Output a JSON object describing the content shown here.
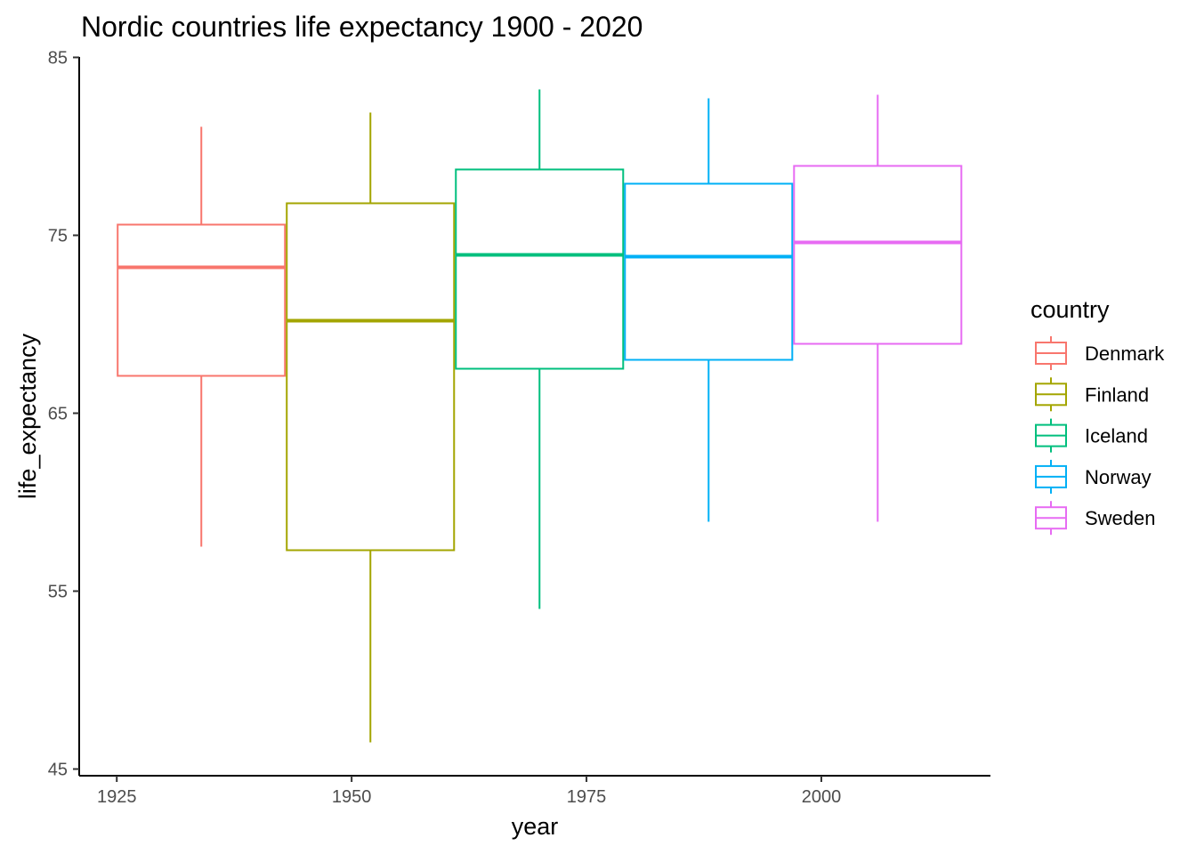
{
  "chart_data": {
    "type": "boxplot",
    "title": "Nordic countries life expectancy 1900 - 2020",
    "xlabel": "year",
    "ylabel": "life_expectancy",
    "xlim": [
      1921,
      2018
    ],
    "ylim": [
      45,
      85
    ],
    "x_ticks": [
      1925,
      1950,
      1975,
      2000
    ],
    "y_ticks": [
      45,
      55,
      65,
      75,
      85
    ],
    "legend_title": "country",
    "legend_position": "right",
    "grid": false,
    "series": [
      {
        "name": "Denmark",
        "color": "#F8766D",
        "x_range": [
          1925,
          1943
        ],
        "whisker_low": 57.5,
        "q1": 67.1,
        "median": 73.2,
        "q3": 75.6,
        "whisker_high": 81.1
      },
      {
        "name": "Finland",
        "color": "#A3A500",
        "x_range": [
          1943,
          1961
        ],
        "whisker_low": 46.5,
        "q1": 57.3,
        "median": 70.2,
        "q3": 76.8,
        "whisker_high": 81.9
      },
      {
        "name": "Iceland",
        "color": "#00BF7D",
        "x_range": [
          1961,
          1979
        ],
        "whisker_low": 54.0,
        "q1": 67.5,
        "median": 73.9,
        "q3": 78.7,
        "whisker_high": 83.2
      },
      {
        "name": "Norway",
        "color": "#00B0F6",
        "x_range": [
          1979,
          1997
        ],
        "whisker_low": 58.9,
        "q1": 68.0,
        "median": 73.8,
        "q3": 77.9,
        "whisker_high": 82.7
      },
      {
        "name": "Sweden",
        "color": "#E76BF3",
        "x_range": [
          1997,
          2015
        ],
        "whisker_low": 58.9,
        "q1": 68.9,
        "median": 74.6,
        "q3": 78.9,
        "whisker_high": 82.9
      }
    ]
  }
}
